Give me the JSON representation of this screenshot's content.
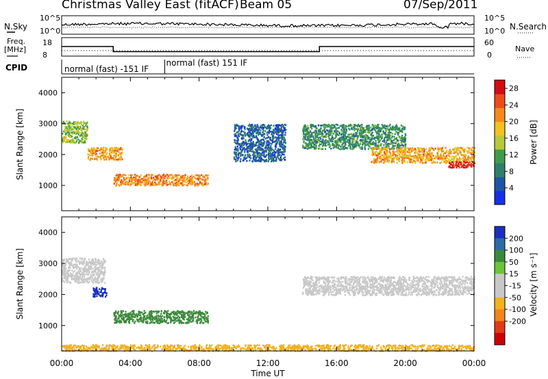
{
  "header": {
    "station": "Christmas Valley East (fitACF)",
    "beam": "Beam 05",
    "date": "07/Sep/2011"
  },
  "noise_panel": {
    "left_label": "N.Sky",
    "right_label": "N.Search",
    "left_ticks": [
      "10^5",
      "10^0"
    ],
    "right_ticks": [
      "10^5",
      "10^0"
    ]
  },
  "freq_panel": {
    "left_label_1": "Freq.",
    "left_label_2": "[MHz]",
    "right_label": "Nave",
    "left_ticks": [
      "18",
      "8"
    ],
    "right_ticks": [
      "60",
      "0"
    ],
    "freq_series": [
      {
        "x": 0.0,
        "y": 13.2
      },
      {
        "x": 3.0,
        "y": 13.2
      },
      {
        "x": 3.0,
        "y": 10.4
      },
      {
        "x": 15.0,
        "y": 10.4
      },
      {
        "x": 15.0,
        "y": 13.2
      },
      {
        "x": 24.0,
        "y": 13.2
      }
    ]
  },
  "cpid_panel": {
    "label": "CPID",
    "segments": [
      {
        "start": 0.0,
        "end": 6.0,
        "text": "normal (fast) -151 IF"
      },
      {
        "start": 6.0,
        "end": 24.0,
        "text": "normal (fast) 151 IF"
      }
    ]
  },
  "axes": {
    "x_ticks": [
      "00:00",
      "04:00",
      "08:00",
      "12:00",
      "16:00",
      "20:00",
      "00:00"
    ],
    "x_label": "Time UT",
    "y_label": "Slant Range [km]",
    "y_ticks": [
      "1000",
      "2000",
      "3000",
      "4000"
    ]
  },
  "power_colorbar": {
    "label": "Power [dB]",
    "ticks": [
      "4",
      "8",
      "12",
      "16",
      "20",
      "24",
      "28"
    ],
    "colors": [
      "#1431e6",
      "#1f55a6",
      "#2f7f6c",
      "#3f9d4a",
      "#b8c83a",
      "#f2c21f",
      "#f58a1c",
      "#ef4a1b",
      "#d40d12"
    ]
  },
  "velocity_colorbar": {
    "label": "Velocity [m s⁻¹]",
    "ticks": [
      "200",
      "100",
      "50",
      "15",
      "-15",
      "-50",
      "-100",
      "-200"
    ],
    "colors": [
      "#1a2fbf",
      "#2d6aa8",
      "#3b8a3b",
      "#6cc43a",
      "#c8c8c8",
      "#c8c8c8",
      "#f2b11e",
      "#f1861a",
      "#e03a18",
      "#cc0000"
    ]
  },
  "chart_data": {
    "type": "heatmap",
    "title": "Christmas Valley East (fitACF) Beam 05 07/Sep/2011",
    "xlabel": "Time UT",
    "ylabel": "Slant Range [km]",
    "x_range_hours": [
      0,
      24
    ],
    "ylim": [
      180,
      4500
    ],
    "panels": [
      {
        "name": "Power",
        "units": "dB",
        "colorbar_range": [
          0,
          30
        ],
        "features": [
          {
            "t_start": 0.0,
            "t_end": 1.5,
            "r_center": 2750,
            "r_halfwidth": 350,
            "value": 14
          },
          {
            "t_start": 1.5,
            "t_end": 3.5,
            "r_center": 2050,
            "r_halfwidth": 200,
            "value": 20
          },
          {
            "t_start": 3.0,
            "t_end": 8.5,
            "r_center": 1200,
            "r_halfwidth": 180,
            "value": 22
          },
          {
            "t_start": 10.0,
            "t_end": 13.0,
            "r_center": 2400,
            "r_halfwidth": 600,
            "value": 6
          },
          {
            "t_start": 14.0,
            "t_end": 20.0,
            "r_center": 2600,
            "r_halfwidth": 400,
            "value": 10
          },
          {
            "t_start": 18.0,
            "t_end": 24.0,
            "r_center": 2000,
            "r_halfwidth": 250,
            "value": 20
          },
          {
            "t_start": 22.5,
            "t_end": 24.0,
            "r_center": 1700,
            "r_halfwidth": 100,
            "value": 28
          }
        ]
      },
      {
        "name": "Velocity",
        "units": "m s^-1",
        "colorbar_range": [
          -200,
          200
        ],
        "features": [
          {
            "t_start": 0.0,
            "t_end": 2.5,
            "r_center": 2800,
            "r_halfwidth": 400,
            "value": 0
          },
          {
            "t_start": 1.8,
            "t_end": 2.6,
            "r_center": 2100,
            "r_halfwidth": 150,
            "value": 200
          },
          {
            "t_start": 3.0,
            "t_end": 8.5,
            "r_center": 1300,
            "r_halfwidth": 200,
            "value": 40
          },
          {
            "t_start": 14.0,
            "t_end": 24.0,
            "r_center": 2300,
            "r_halfwidth": 300,
            "value": 0
          },
          {
            "t_start": 0.0,
            "t_end": 24.0,
            "r_center": 300,
            "r_halfwidth": 100,
            "value": -30
          }
        ]
      }
    ]
  }
}
